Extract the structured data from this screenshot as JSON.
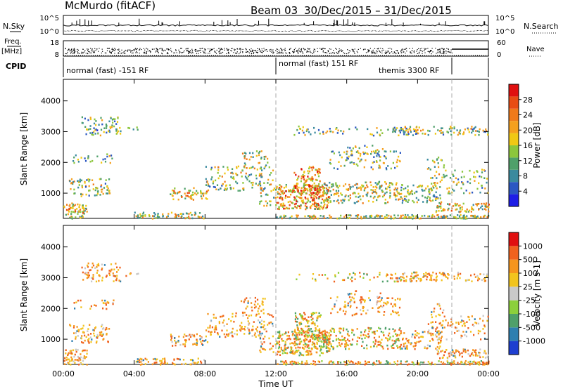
{
  "header": {
    "site": "McMurdo (fitACF)",
    "beam": "Beam 03",
    "date_range": "30/Dec/2015 – 31/Dec/2015"
  },
  "noise_panel": {
    "left_label": "N.Sky",
    "right_label": "N.Search",
    "left_ticks": [
      "10^5",
      "10^0"
    ],
    "right_ticks": [
      "10^5",
      "10^0"
    ]
  },
  "freq_panel": {
    "left_label_top": "Freq.",
    "left_label_unit": "[MHz]",
    "right_label": "Nave",
    "left_ticks": [
      "18",
      "8"
    ],
    "right_ticks": [
      "60",
      "0"
    ]
  },
  "cpid_panel": {
    "label": "CPID",
    "modes": [
      {
        "text": "normal (fast) -151 RF",
        "start_hour": 0,
        "end_hour": 12
      },
      {
        "text": "normal (fast) 151 RF",
        "start_hour": 12,
        "end_hour": 22
      },
      {
        "text": "themis 3300 RF",
        "start_hour": 22,
        "end_hour": 24
      }
    ]
  },
  "x_axis": {
    "title": "Time UT",
    "ticks": [
      "00:00",
      "04:00",
      "08:00",
      "12:00",
      "16:00",
      "20:00",
      "00:00"
    ]
  },
  "colors": {
    "power": [
      "#1e1ee6",
      "#2b57c2",
      "#3a8a9e",
      "#4fa06a",
      "#8cc63c",
      "#f0c814",
      "#f5a01e",
      "#ef7a1a",
      "#e84c14",
      "#e01010"
    ],
    "velocity": [
      "#e01010",
      "#f0621e",
      "#f5951e",
      "#f2c41e",
      "#c9c9c9",
      "#8cd03c",
      "#4fa06a",
      "#2e7fb0",
      "#1e3fd0"
    ]
  },
  "chart_data": [
    {
      "type": "heatmap",
      "name": "power",
      "ylabel": "Slant Range [km]",
      "yticks": [
        1000,
        2000,
        3000,
        4000
      ],
      "ylim": [
        180,
        4700
      ],
      "xlim_hours": [
        0,
        24
      ],
      "colorbar_label": "Power [dB]",
      "colorbar_ticks": [
        "4",
        "8",
        "12",
        "16",
        "20",
        "24",
        "28"
      ],
      "clim": [
        0,
        30
      ]
    },
    {
      "type": "heatmap",
      "name": "velocity",
      "ylabel": "Slant Range [km]",
      "yticks": [
        1000,
        2000,
        3000,
        4000
      ],
      "ylim": [
        180,
        4700
      ],
      "xlim_hours": [
        0,
        24
      ],
      "colorbar_label": "Velocity [m s-1]",
      "colorbar_ticks": [
        "1000",
        "500",
        "100",
        "25",
        "-25",
        "-100",
        "-500",
        "-1000"
      ]
    }
  ]
}
